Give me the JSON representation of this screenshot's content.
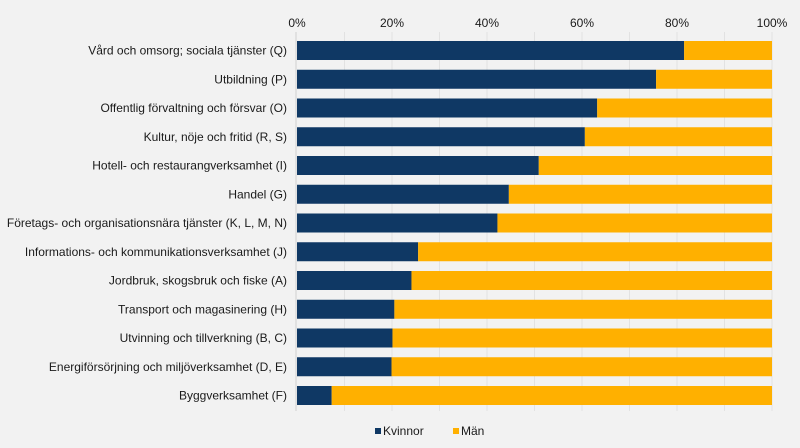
{
  "chart_data": {
    "type": "bar",
    "orientation": "horizontal",
    "stacked": true,
    "percent_stacked": true,
    "title": "",
    "xlabel": "",
    "ylabel": "",
    "xlim": [
      0,
      100
    ],
    "x_ticks": [
      "0%",
      "20%",
      "40%",
      "60%",
      "80%",
      "100%"
    ],
    "grid": true,
    "legend_position": "bottom",
    "categories": [
      "Vård och omsorg; sociala tjänster (Q)",
      "Utbildning (P)",
      "Offentlig förvaltning och försvar (O)",
      "Kultur, nöje och fritid (R, S)",
      "Hotell- och restaurangverksamhet (I)",
      "Handel (G)",
      "Företags- och organisationsnära tjänster (K, L, M, N)",
      "Informations- och kommunikationsverksamhet (J)",
      "Jordbruk, skogsbruk och fiske (A)",
      "Transport och magasinering (H)",
      "Utvinning och tillverkning (B, C)",
      "Energiförsörjning och miljöverksamhet (D, E)",
      "Byggverksamhet (F)"
    ],
    "series": [
      {
        "name": "Kvinnor",
        "color": "#0f3864",
        "values": [
          81.5,
          75.6,
          63.2,
          60.6,
          50.9,
          44.6,
          42.2,
          25.5,
          24.1,
          20.5,
          20.1,
          19.9,
          7.3
        ]
      },
      {
        "name": "Män",
        "color": "#ffb000",
        "values": [
          18.5,
          24.4,
          36.8,
          39.4,
          49.1,
          55.4,
          57.8,
          74.5,
          75.9,
          79.5,
          79.9,
          80.1,
          92.7
        ]
      }
    ]
  }
}
